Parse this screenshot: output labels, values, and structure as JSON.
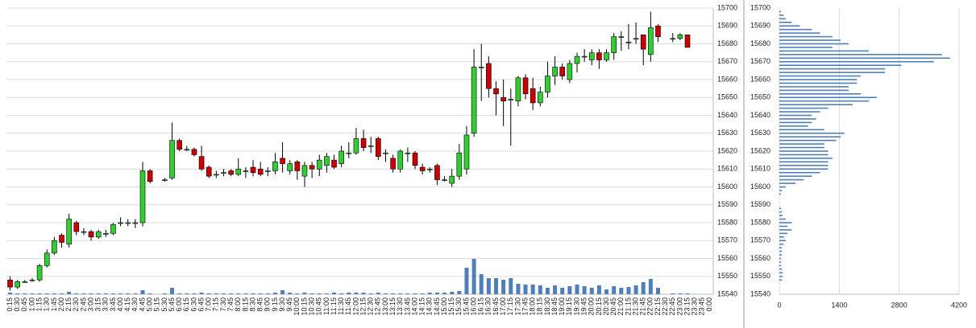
{
  "chart_data": [
    {
      "type": "candlestick",
      "categories": [
        "0:15",
        "0:30",
        "0:45",
        "1:00",
        "1:15",
        "1:30",
        "1:45",
        "2:00",
        "2:15",
        "2:30",
        "2:45",
        "3:00",
        "3:15",
        "3:30",
        "3:45",
        "4:00",
        "4:15",
        "4:30",
        "4:45",
        "5:00",
        "5:15",
        "5:30",
        "5:45",
        "6:00",
        "6:15",
        "6:30",
        "6:45",
        "7:00",
        "7:15",
        "7:30",
        "7:45",
        "8:00",
        "8:15",
        "8:30",
        "8:45",
        "9:00",
        "9:15",
        "9:30",
        "9:45",
        "10:00",
        "10:15",
        "10:30",
        "10:45",
        "11:00",
        "11:15",
        "11:30",
        "11:45",
        "12:00",
        "12:15",
        "12:30",
        "12:45",
        "13:00",
        "13:15",
        "13:30",
        "13:45",
        "14:00",
        "14:15",
        "14:30",
        "14:45",
        "15:00",
        "15:15",
        "15:30",
        "15:45",
        "16:00",
        "16:15",
        "16:30",
        "16:45",
        "17:00",
        "17:15",
        "17:30",
        "17:45",
        "18:00",
        "18:15",
        "18:30",
        "18:45",
        "19:00",
        "19:15",
        "19:30",
        "19:45",
        "20:00",
        "20:15",
        "20:30",
        "20:45",
        "21:00",
        "21:15",
        "21:30",
        "21:45",
        "22:00",
        "22:15",
        "22:30",
        "22:45",
        "23:00",
        "23:15",
        "23:30",
        "23:45",
        "0:00"
      ],
      "open": [
        15548,
        15544,
        15547,
        15548,
        15548,
        15556,
        15563,
        15573,
        15568,
        15580,
        15575,
        15575,
        15572,
        15574,
        15574,
        15580,
        15580,
        15580,
        15580,
        15609,
        null,
        15604,
        15605,
        15626,
        15621,
        15621,
        15617,
        15611,
        15607,
        15608,
        15609,
        15607,
        15609,
        15611,
        15610,
        15609,
        15609,
        15616,
        15609,
        15614,
        15606,
        15612,
        15610,
        15612,
        15615,
        15613,
        15619,
        15619,
        15627,
        15623,
        15627,
        15619,
        15616,
        15610,
        15619,
        15619,
        15611,
        15610,
        15612,
        15604,
        15602,
        15606,
        15610,
        15630,
        15667,
        15669,
        15655,
        15650,
        15649,
        15648,
        15661,
        15655,
        15647,
        15653,
        15662,
        15667,
        15660,
        15669,
        15673,
        15671,
        15675,
        15671,
        15675,
        15684,
        15681,
        15683,
        15685,
        15674,
        15690,
        null,
        15683,
        15683,
        15685,
        null,
        null,
        null
      ],
      "high": [
        15550,
        15548,
        15548,
        15549,
        15557,
        15565,
        15572,
        15574,
        15585,
        15581,
        15577,
        15576,
        15576,
        15576,
        15580,
        15583,
        15582,
        15582,
        15614,
        15610,
        null,
        15605,
        15636,
        15627,
        15623,
        15622,
        15623,
        15612,
        15609,
        15610,
        15610,
        15616,
        15611,
        15615,
        15614,
        15611,
        15619,
        15625,
        15615,
        15615,
        15614,
        15614,
        15618,
        15619,
        15618,
        15623,
        15625,
        15633,
        15632,
        15628,
        15628,
        15621,
        15618,
        15621,
        15622,
        15620,
        15613,
        15611,
        15613,
        15606,
        15610,
        15624,
        15634,
        15677,
        15680,
        15673,
        15659,
        15660,
        15655,
        15662,
        15663,
        15661,
        15656,
        15670,
        15673,
        15669,
        15671,
        15675,
        15677,
        15677,
        15677,
        15677,
        15686,
        15687,
        15691,
        15692,
        15685,
        15698,
        15691,
        null,
        15686,
        15686,
        15685,
        null,
        null,
        null
      ],
      "low": [
        15542,
        15543,
        15547,
        15547,
        15547,
        15555,
        15562,
        15566,
        15566,
        15573,
        15573,
        15570,
        15571,
        15572,
        15573,
        15578,
        15578,
        15577,
        15578,
        15602,
        null,
        15603,
        15604,
        15620,
        15620,
        15617,
        15609,
        15605,
        15605,
        15606,
        15606,
        15606,
        15605,
        15606,
        15606,
        15606,
        15607,
        15608,
        15607,
        15604,
        15600,
        15605,
        15606,
        15608,
        15610,
        15611,
        15616,
        15618,
        15620,
        15619,
        15615,
        15614,
        15608,
        15608,
        15614,
        15610,
        15607,
        15608,
        15601,
        15603,
        15600,
        15604,
        15607,
        15628,
        15648,
        15650,
        15640,
        15634,
        15623,
        15645,
        15649,
        15643,
        15645,
        15650,
        15657,
        15660,
        15658,
        15664,
        15670,
        15668,
        15666,
        15670,
        15671,
        15676,
        15677,
        15680,
        15668,
        15670,
        15681,
        null,
        15681,
        15682,
        15678,
        null,
        null,
        null
      ],
      "close": [
        15544,
        15547,
        15547,
        15548,
        15556,
        15563,
        15570,
        15569,
        15582,
        15575,
        15575,
        15572,
        15575,
        15574,
        15579,
        15580,
        15580,
        15580,
        15609,
        15603,
        null,
        15604,
        15626,
        15621,
        15621,
        15618,
        15610,
        15606,
        15607,
        15608,
        15607,
        15610,
        15609,
        15608,
        15607,
        15609,
        15614,
        15613,
        15613,
        15609,
        15612,
        15610,
        15615,
        15617,
        15611,
        15620,
        15619,
        15627,
        15622,
        15623,
        15617,
        15619,
        15610,
        15620,
        15619,
        15612,
        15609,
        15610,
        15604,
        15604,
        15606,
        15619,
        15629,
        15667,
        15667,
        15655,
        15652,
        15648,
        15649,
        15661,
        15652,
        15647,
        15653,
        15662,
        15667,
        15662,
        15669,
        15673,
        15673,
        15675,
        15671,
        15675,
        15684,
        15684,
        15681,
        15683,
        15677,
        15689,
        15684,
        null,
        15683,
        15685,
        15678,
        null,
        null,
        null
      ],
      "volume": [
        2,
        1,
        1,
        1,
        1,
        1,
        1,
        1,
        3,
        1,
        1,
        1,
        1,
        1,
        1,
        1,
        1,
        1,
        5,
        1,
        null,
        1,
        8,
        1,
        1,
        1,
        2,
        1,
        1,
        1,
        1,
        1,
        1,
        1,
        1,
        1,
        2,
        5,
        2,
        1,
        2,
        1,
        1,
        1,
        2,
        1,
        2,
        2,
        2,
        1,
        2,
        1,
        1,
        1,
        1,
        1,
        1,
        2,
        2,
        2,
        3,
        4,
        33,
        44,
        25,
        20,
        20,
        18,
        20,
        13,
        12,
        12,
        11,
        8,
        11,
        8,
        10,
        12,
        10,
        8,
        11,
        6,
        10,
        8,
        9,
        11,
        15,
        19,
        8,
        null,
        1,
        1,
        1,
        null,
        null,
        null
      ],
      "up_color": "#33cc33",
      "down_color": "#cc0000",
      "volume_color": "#4f7fb8",
      "ylim": [
        15540,
        15700
      ],
      "yticks": [
        15540,
        15550,
        15560,
        15570,
        15580,
        15590,
        15600,
        15610,
        15620,
        15630,
        15640,
        15650,
        15660,
        15670,
        15680,
        15690,
        15700
      ],
      "grid": true
    },
    {
      "type": "barh",
      "y": [
        15698,
        15696,
        15694,
        15692,
        15690,
        15688,
        15686,
        15684,
        15682,
        15680,
        15678,
        15676,
        15674,
        15672,
        15670,
        15668,
        15666,
        15664,
        15662,
        15660,
        15658,
        15656,
        15654,
        15652,
        15650,
        15648,
        15646,
        15644,
        15642,
        15640,
        15638,
        15636,
        15634,
        15632,
        15630,
        15628,
        15626,
        15624,
        15622,
        15620,
        15618,
        15616,
        15614,
        15612,
        15610,
        15608,
        15606,
        15604,
        15602,
        15600,
        15598,
        15596,
        15594,
        15592,
        15590,
        15588,
        15586,
        15584,
        15582,
        15580,
        15578,
        15576,
        15574,
        15572,
        15570,
        15568,
        15566,
        15564,
        15562,
        15560,
        15558,
        15556,
        15554,
        15552,
        15550,
        15548
      ],
      "values": [
        40,
        100,
        150,
        290,
        480,
        760,
        950,
        1240,
        1430,
        1620,
        1240,
        2090,
        3800,
        3990,
        3610,
        2850,
        2470,
        2470,
        1900,
        1810,
        1810,
        1620,
        1620,
        1900,
        2280,
        2090,
        1710,
        1140,
        950,
        760,
        860,
        760,
        670,
        1050,
        1520,
        1430,
        1330,
        1050,
        1050,
        1140,
        1140,
        1240,
        1140,
        1140,
        1140,
        950,
        760,
        570,
        380,
        150,
        60,
        40,
        0,
        0,
        0,
        40,
        60,
        80,
        150,
        290,
        190,
        290,
        190,
        110,
        150,
        100,
        60,
        60,
        60,
        40,
        40,
        40,
        60,
        80,
        80,
        60
      ],
      "color": "#4f7fb8",
      "xlim": [
        0,
        4200
      ],
      "xticks": [
        0,
        1400,
        2800,
        4200
      ],
      "ylim": [
        15540,
        15700
      ],
      "yticks": [
        15540,
        15550,
        15560,
        15570,
        15580,
        15590,
        15600,
        15610,
        15620,
        15630,
        15640,
        15650,
        15660,
        15670,
        15680,
        15690,
        15700
      ],
      "grid": true
    }
  ]
}
